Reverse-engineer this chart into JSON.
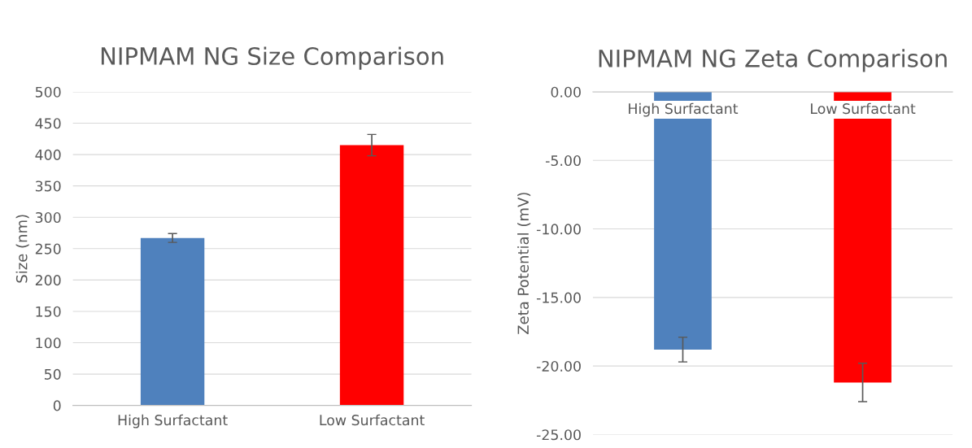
{
  "chart_data": [
    {
      "type": "bar",
      "title": "NIPMAM NG Size Comparison",
      "ylabel": "Size (nm)",
      "categories": [
        "High Surfactant",
        "Low Surfactant"
      ],
      "colors": [
        "#4f81bd",
        "#ff0000"
      ],
      "values": [
        267,
        415
      ],
      "errors": [
        7,
        17
      ],
      "ylim": [
        0,
        500
      ],
      "yticks": [
        0,
        50,
        100,
        150,
        200,
        250,
        300,
        350,
        400,
        450,
        500
      ],
      "grid": "y",
      "legend": false
    },
    {
      "type": "bar",
      "title": "NIPMAM NG Zeta Comparison",
      "ylabel": "Zeta Potential (mV)",
      "categories": [
        "High Surfactant",
        "Low Surfactant"
      ],
      "colors": [
        "#4f81bd",
        "#ff0000"
      ],
      "values": [
        -18.8,
        -21.2
      ],
      "errors": [
        0.9,
        1.4
      ],
      "ylim": [
        -25,
        0
      ],
      "yticks": [
        {
          "value": 0,
          "label": "0.00"
        },
        {
          "value": -5,
          "label": "-5.00"
        },
        {
          "value": -10,
          "label": "-10.00"
        },
        {
          "value": -15,
          "label": "-15.00"
        },
        {
          "value": -20,
          "label": "-20.00"
        },
        {
          "value": -25,
          "label": "-25.00"
        }
      ],
      "grid": "y",
      "legend": false
    }
  ]
}
